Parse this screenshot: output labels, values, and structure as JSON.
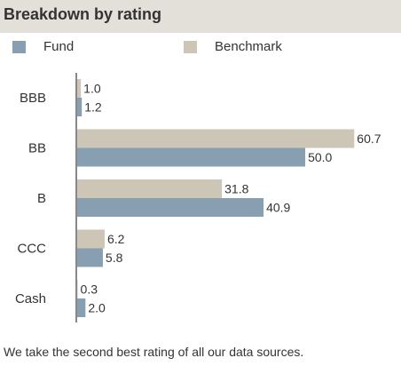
{
  "header": {
    "title": "Breakdown by rating"
  },
  "legend": {
    "fund_label": "Fund",
    "benchmark_label": "Benchmark"
  },
  "colors": {
    "fund": "#879fb1",
    "benchmark": "#cdc6b6",
    "axis": "#888888",
    "header_bg": "#e3e0d9"
  },
  "chart_data": {
    "type": "bar",
    "orientation": "horizontal",
    "categories": [
      "BBB",
      "BB",
      "B",
      "CCC",
      "Cash"
    ],
    "series": [
      {
        "name": "Benchmark",
        "values": [
          1.0,
          60.7,
          31.8,
          6.2,
          0.3
        ]
      },
      {
        "name": "Fund",
        "values": [
          1.2,
          50.0,
          40.9,
          5.8,
          2.0
        ]
      }
    ],
    "data_labels": {
      "Benchmark": [
        "1.0",
        "60.7",
        "31.8",
        "6.2",
        "0.3"
      ],
      "Fund": [
        "1.2",
        "50.0",
        "40.9",
        "5.8",
        "2.0"
      ]
    },
    "xlim": [
      0,
      62
    ],
    "grid": false,
    "legend_position": "top"
  },
  "footnote": "We take the second best rating of all our data sources."
}
